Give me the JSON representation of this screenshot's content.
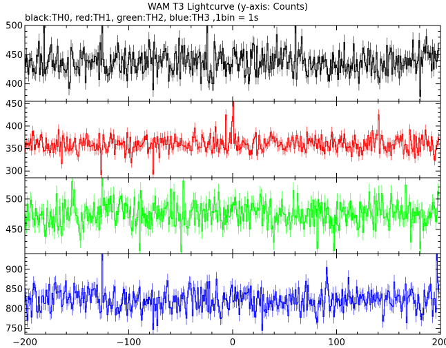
{
  "chart_data": {
    "type": "line",
    "title": "WAM T3 Lightcurve (y-axis: Counts)",
    "subtitle": "black:TH0, red:TH1, green:TH2, blue:TH3 ,1bin = 1s",
    "x_axis": {
      "range": [
        -200,
        200
      ],
      "major_ticks": [
        -200,
        -100,
        0,
        100,
        200
      ],
      "minor_step": 20
    },
    "x": {
      "start": -200,
      "end": 198,
      "step": 1
    },
    "series": [
      {
        "color": "#000000",
        "ylim": [
          370,
          500
        ],
        "y_ticks": [
          400,
          450,
          500
        ],
        "y_minor_step": 10,
        "mean": 437,
        "spread": 21,
        "min": 375,
        "max": 500,
        "spikes": [
          [
            -25,
            500
          ],
          [
            -182,
            500
          ],
          [
            180,
            378
          ],
          [
            -126,
            500
          ],
          [
            60,
            500
          ]
        ]
      },
      {
        "color": "#ff0000",
        "ylim": [
          285,
          455
        ],
        "y_ticks": [
          300,
          350,
          400,
          450
        ],
        "y_minor_step": 10,
        "mean": 360,
        "spread": 17,
        "min": 292,
        "max": 455,
        "spikes": [
          [
            0,
            455
          ],
          [
            -1,
            410
          ],
          [
            -127,
            292
          ],
          [
            -77,
            293
          ],
          [
            140,
            425
          ],
          [
            -7,
            425
          ]
        ]
      },
      {
        "color": "#00ff00",
        "ylim": [
          410,
          535
        ],
        "y_ticks": [
          450,
          500
        ],
        "y_minor_step": 10,
        "mean": 475,
        "spread": 22,
        "min": 410,
        "max": 535,
        "spikes": [
          [
            -126,
            535
          ],
          [
            -90,
            415
          ],
          [
            -50,
            413
          ],
          [
            -48,
            530
          ],
          [
            97,
            415
          ],
          [
            180,
            418
          ]
        ]
      },
      {
        "color": "#0000ff",
        "ylim": [
          735,
          940
        ],
        "y_ticks": [
          750,
          800,
          850,
          900
        ],
        "y_minor_step": 10,
        "mean": 820,
        "spread": 29,
        "min": 740,
        "max": 940,
        "spikes": [
          [
            -126,
            940
          ],
          [
            196,
            940
          ],
          [
            28,
            745
          ],
          [
            -198,
            770
          ],
          [
            90,
            905
          ]
        ]
      }
    ]
  }
}
